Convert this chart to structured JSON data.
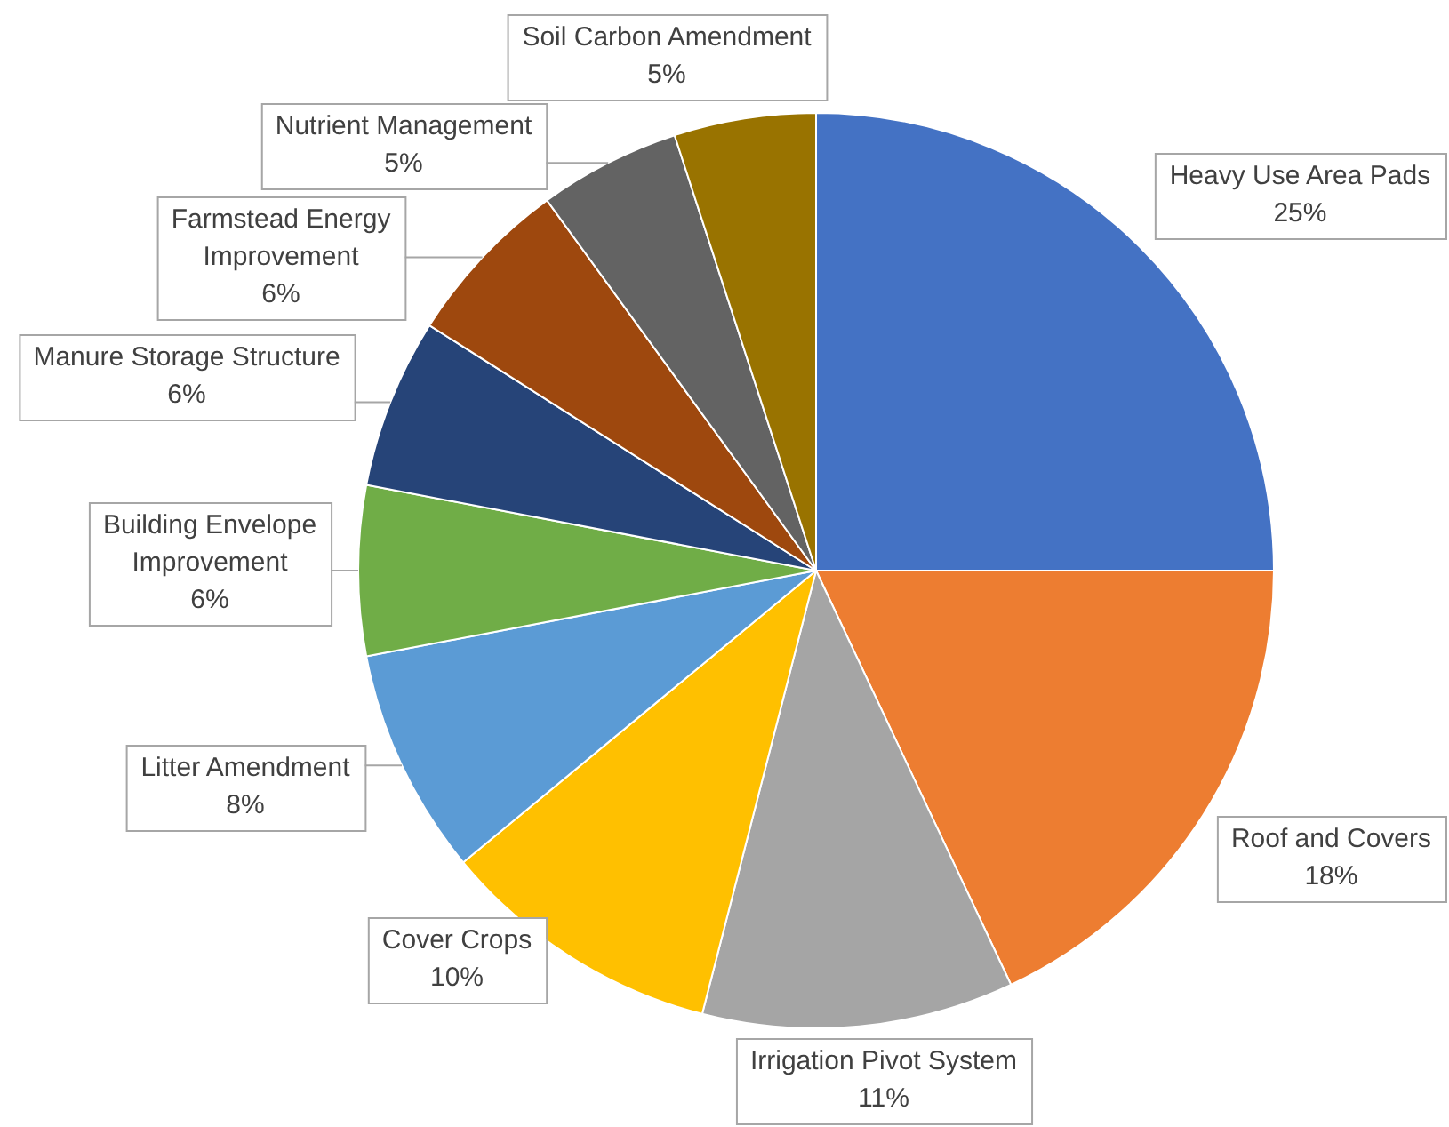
{
  "chart_data": {
    "type": "pie",
    "categories": [
      "Heavy Use Area Pads",
      "Roof and Covers",
      "Irrigation Pivot System",
      "Cover Crops",
      "Litter Amendment",
      "Building Envelope Improvement",
      "Manure Storage Structure",
      "Farmstead Energy Improvement",
      "Nutrient Management",
      "Soil Carbon Amendment"
    ],
    "values": [
      25,
      18,
      11,
      10,
      8,
      6,
      6,
      6,
      5,
      5
    ],
    "value_labels": [
      "25%",
      "18%",
      "11%",
      "10%",
      "8%",
      "6%",
      "6%",
      "6%",
      "5%",
      "5%"
    ],
    "colors": [
      "#4472c4",
      "#ed7d31",
      "#a5a5a5",
      "#ffc000",
      "#5b9bd5",
      "#70ad47",
      "#264478",
      "#9e480e",
      "#636363",
      "#997300"
    ],
    "legend": false
  }
}
